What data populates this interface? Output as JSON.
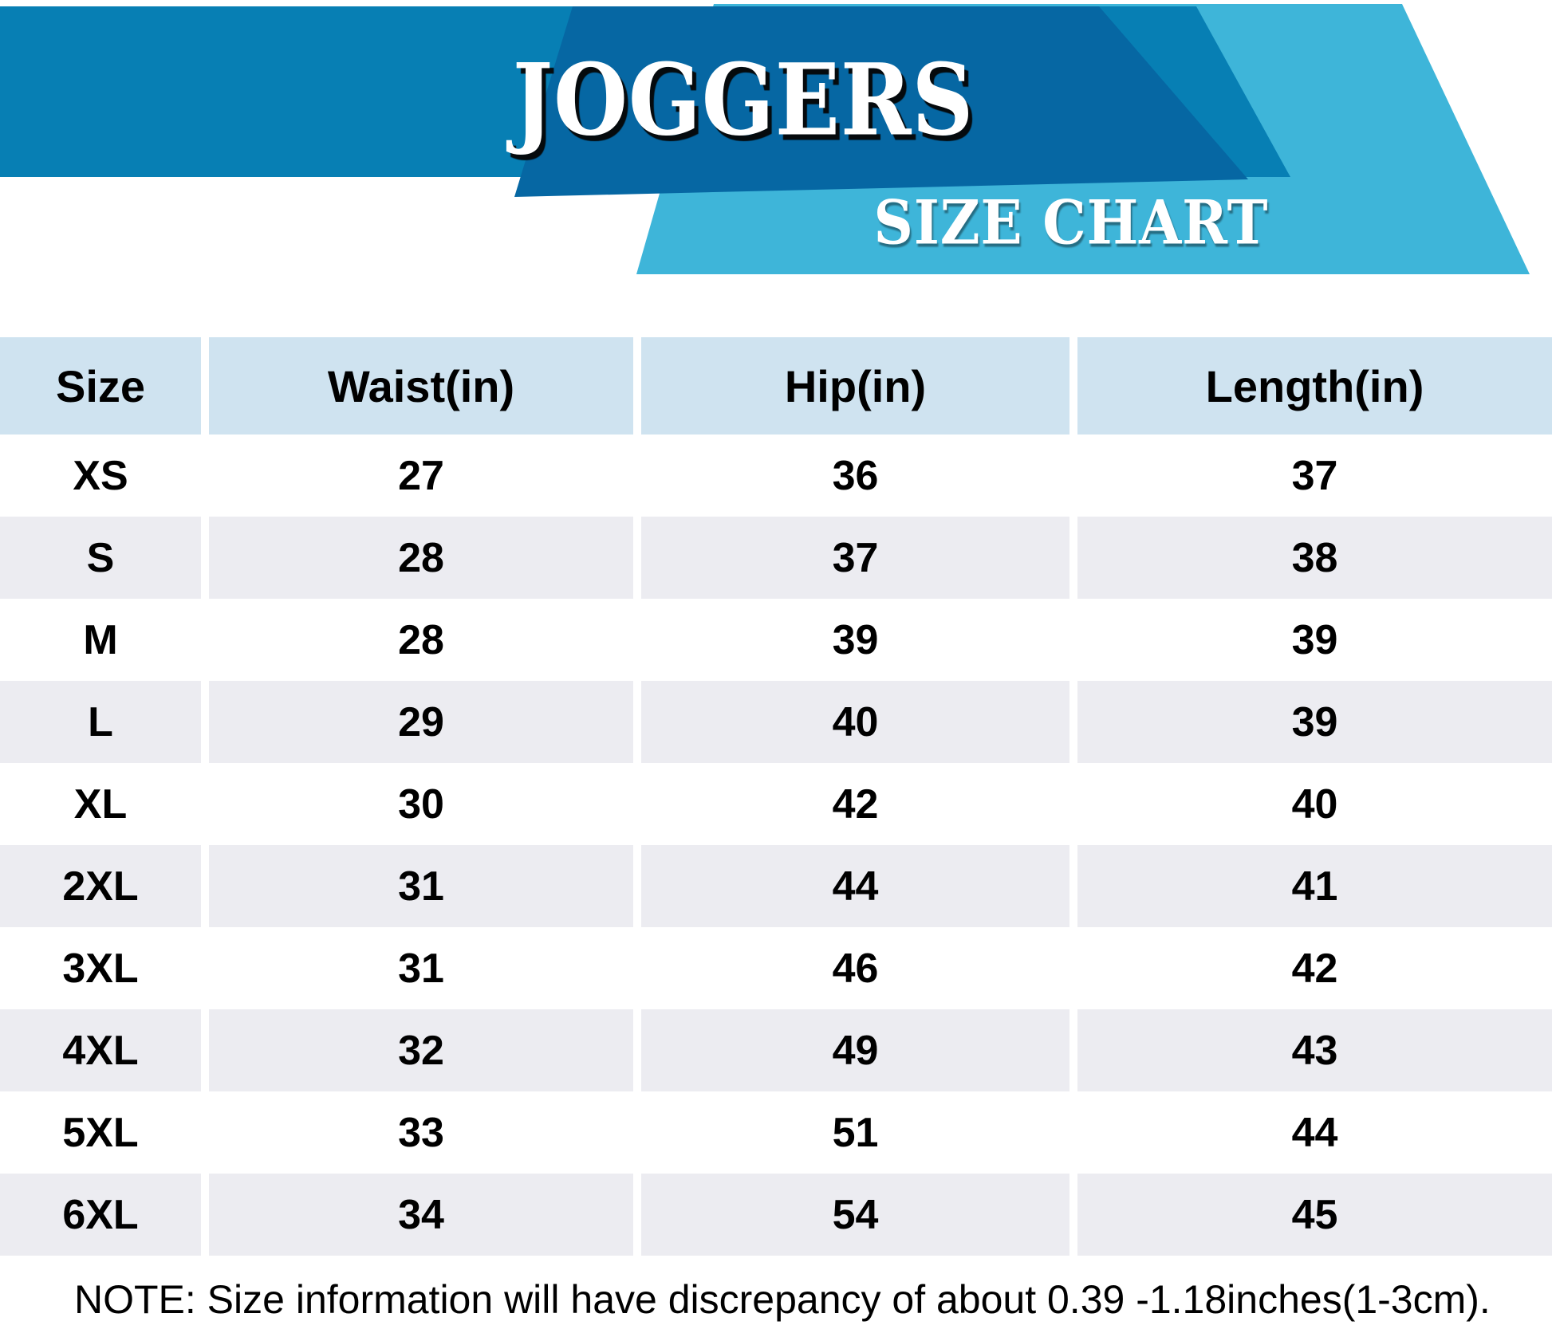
{
  "banner": {
    "title": "JOGGERS",
    "subtitle": "SIZE CHART",
    "colors": {
      "medium_blue": "#077FB4",
      "dark_blue": "#0667A3",
      "cyan": "#3EB5D9"
    }
  },
  "table_style": {
    "header_bg": "#CFE3F0",
    "alt_row_bg": "#ECECF1"
  },
  "note": "NOTE: Size information will have discrepancy of about 0.39 -1.18inches(1-3cm).",
  "chart_data": {
    "type": "table",
    "title": "JOGGERS",
    "subtitle": "SIZE CHART",
    "columns": [
      "Size",
      "Waist(in)",
      "Hip(in)",
      "Length(in)"
    ],
    "rows": [
      [
        "XS",
        "27",
        "36",
        "37"
      ],
      [
        "S",
        "28",
        "37",
        "38"
      ],
      [
        "M",
        "28",
        "39",
        "39"
      ],
      [
        "L",
        "29",
        "40",
        "39"
      ],
      [
        "XL",
        "30",
        "42",
        "40"
      ],
      [
        "2XL",
        "31",
        "44",
        "41"
      ],
      [
        "3XL",
        "31",
        "46",
        "42"
      ],
      [
        "4XL",
        "32",
        "49",
        "43"
      ],
      [
        "5XL",
        "33",
        "51",
        "44"
      ],
      [
        "6XL",
        "34",
        "54",
        "45"
      ]
    ],
    "note": "NOTE: Size information will have discrepancy of about 0.39 -1.18inches(1-3cm)."
  }
}
